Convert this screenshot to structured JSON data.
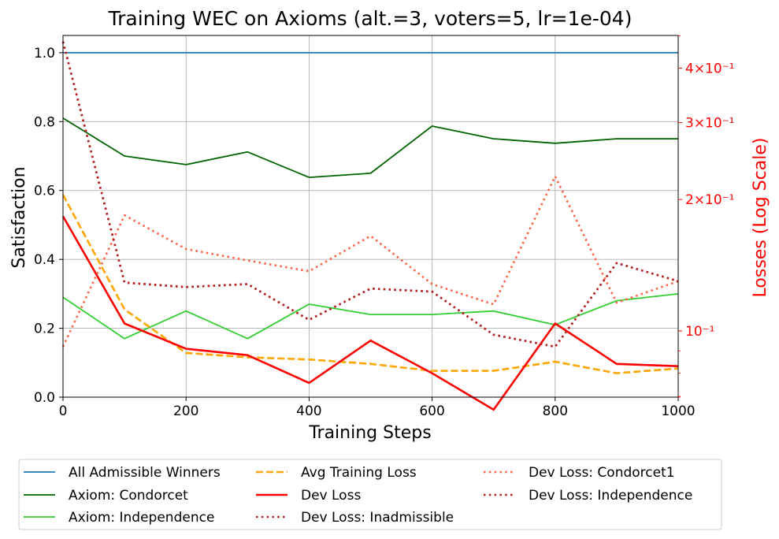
{
  "chart_data": {
    "type": "line",
    "title": "Training WEC on Axioms (alt.=3, voters=5, lr=1e-04)",
    "xlabel": "Training Steps",
    "ylabel": "Satisfaction",
    "y2label": "Losses (Log Scale)",
    "xlim": [
      0,
      1000
    ],
    "ylim": [
      0,
      1.05
    ],
    "y2scale": "log",
    "y2lim": [
      0.0705,
      0.475
    ],
    "grid": true,
    "legend_position": "bottom",
    "x": [
      0,
      100,
      200,
      300,
      400,
      500,
      600,
      700,
      800,
      900,
      1000
    ],
    "xticks": [
      0,
      200,
      400,
      600,
      800,
      1000
    ],
    "xtick_labels": [
      "0",
      "200",
      "400",
      "600",
      "800",
      "1000"
    ],
    "yticks": [
      0.0,
      0.2,
      0.4,
      0.6,
      0.8,
      1.0
    ],
    "ytick_labels": [
      "0.0",
      "0.2",
      "0.4",
      "0.6",
      "0.8",
      "1.0"
    ],
    "y2ticks": [
      0.1,
      0.2,
      0.3,
      0.4
    ],
    "y2tick_labels": [
      "10⁻¹",
      "2×10⁻¹",
      "3×10⁻¹",
      "4×10⁻¹"
    ],
    "series": [
      {
        "name": "All Admissible Winners",
        "axis": "left",
        "color": "#1f77b4",
        "style": "solid",
        "width": 1.7,
        "values": [
          1.0,
          1.0,
          1.0,
          1.0,
          1.0,
          1.0,
          1.0,
          1.0,
          1.0,
          1.0,
          1.0
        ]
      },
      {
        "name": "Axiom: Condorcet",
        "axis": "left",
        "color": "#006400",
        "style": "solid",
        "width": 1.8,
        "values": [
          0.81,
          0.7,
          0.675,
          0.712,
          0.638,
          0.65,
          0.787,
          0.75,
          0.737,
          0.75,
          0.75
        ]
      },
      {
        "name": "Axiom: Independence",
        "axis": "left",
        "color": "#32cd32",
        "style": "solid",
        "width": 1.8,
        "values": [
          0.29,
          0.17,
          0.25,
          0.17,
          0.27,
          0.24,
          0.24,
          0.25,
          0.21,
          0.28,
          0.3
        ]
      },
      {
        "name": "Avg Training Loss",
        "axis": "right",
        "color": "#ffa500",
        "style": "dashed",
        "width": 2.6,
        "values": [
          0.205,
          0.112,
          0.089,
          0.087,
          0.086,
          0.084,
          0.081,
          0.081,
          0.085,
          0.08,
          0.082
        ]
      },
      {
        "name": "Dev Loss",
        "axis": "right",
        "color": "#ff0000",
        "style": "solid",
        "width": 2.6,
        "values": [
          0.183,
          0.104,
          0.091,
          0.088,
          0.076,
          0.095,
          0.08,
          0.066,
          0.104,
          0.084,
          0.083
        ]
      },
      {
        "name": "Dev Loss: Inadmissible",
        "axis": "right",
        "color": "#b22222",
        "style": "dotted",
        "width": 2.6,
        "values": [
          0.46,
          0.129,
          0.126,
          0.128,
          0.106,
          0.125,
          0.123,
          0.098,
          0.092,
          0.143,
          0.13
        ]
      },
      {
        "name": "Dev Loss: Condorcet1",
        "axis": "right",
        "color": "#ff6347",
        "style": "dotted",
        "width": 2.6,
        "values": [
          0.092,
          0.184,
          0.154,
          0.145,
          0.137,
          0.165,
          0.128,
          0.115,
          0.226,
          0.116,
          0.13
        ]
      },
      {
        "name": "Dev Loss: Independence",
        "axis": "right",
        "color": "#b22222",
        "style": "dotted",
        "width": 2.6,
        "values": [
          0.46,
          0.129,
          0.126,
          0.128,
          0.106,
          0.125,
          0.123,
          0.098,
          0.092,
          0.143,
          0.13
        ]
      }
    ]
  }
}
